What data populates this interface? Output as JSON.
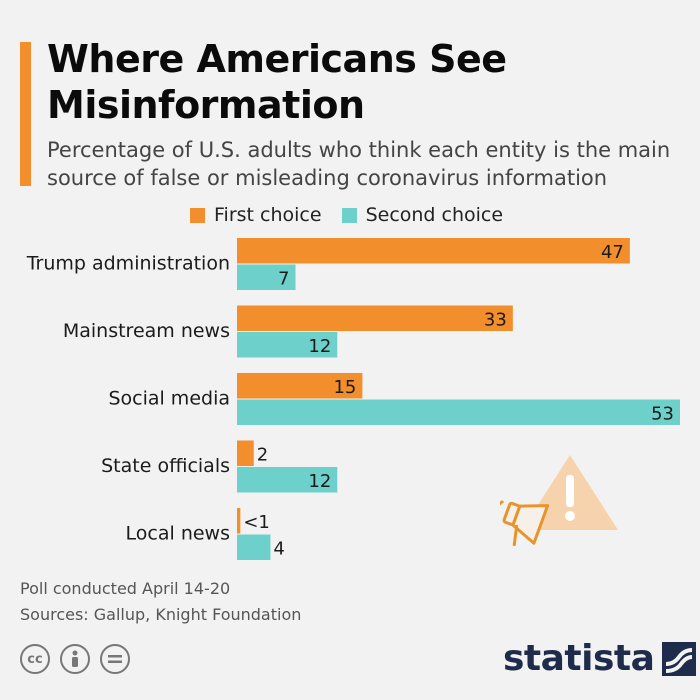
{
  "header": {
    "title": "Where Americans See Misinformation",
    "subtitle": "Percentage of U.S. adults who think each entity is the main source of false or misleading coronavirus information"
  },
  "colors": {
    "first": "#f28e2b",
    "second": "#6dd0cb",
    "accent": "#f28e2b",
    "brand": "#1e2b4a"
  },
  "chart_data": {
    "type": "bar",
    "orientation": "horizontal",
    "title": "Where Americans See Misinformation",
    "subtitle": "Percentage of U.S. adults who think each entity is the main source of false or misleading coronavirus information",
    "categories": [
      "Trump administration",
      "Mainstream news",
      "Social media",
      "State officials",
      "Local news"
    ],
    "series": [
      {
        "name": "First choice",
        "values": [
          47,
          33,
          15,
          2,
          0.4
        ],
        "labels": [
          "47",
          "33",
          "15",
          "2",
          "<1"
        ]
      },
      {
        "name": "Second choice",
        "values": [
          7,
          12,
          53,
          12,
          4
        ],
        "labels": [
          "7",
          "12",
          "53",
          "12",
          "4"
        ]
      }
    ],
    "xlim": [
      0,
      53
    ],
    "grid": false,
    "legend": "top"
  },
  "footer": {
    "note": "Poll conducted April 14-20",
    "sources": "Sources: Gallup, Knight Foundation",
    "brand": "statista",
    "license_icons": [
      "cc-icon",
      "attribution-icon",
      "no-derivatives-icon"
    ]
  }
}
